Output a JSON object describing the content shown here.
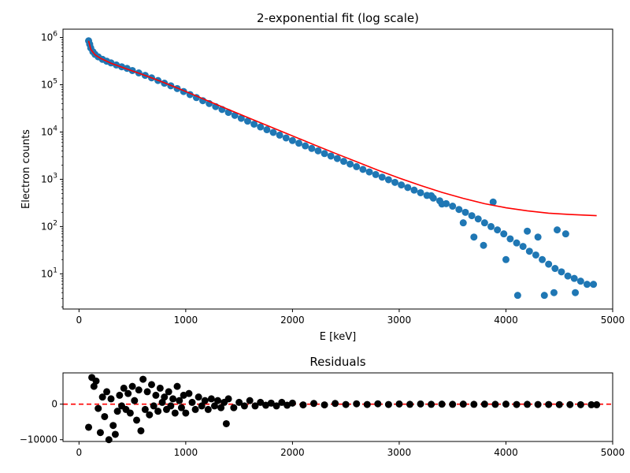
{
  "chart_data": [
    {
      "type": "scatter",
      "title": "2-exponential fit (log scale)",
      "xlabel": "E [keV]",
      "ylabel": "Electron counts",
      "xlim": [
        -150,
        5000
      ],
      "ylim": [
        1.8,
        1500000
      ],
      "yscale": "log",
      "xticks": [
        0,
        1000,
        2000,
        3000,
        4000,
        5000
      ],
      "yticks": [
        {
          "value": 10,
          "base": "10",
          "exp": "1"
        },
        {
          "value": 100,
          "base": "10",
          "exp": "2"
        },
        {
          "value": 1000,
          "base": "10",
          "exp": "3"
        },
        {
          "value": 10000,
          "base": "10",
          "exp": "4"
        },
        {
          "value": 100000,
          "base": "10",
          "exp": "5"
        },
        {
          "value": 1000000,
          "base": "10",
          "exp": "6"
        }
      ],
      "grid": false,
      "series": [
        {
          "kind": "scatter",
          "color": "#1f77b4",
          "points": [
            [
              90,
              850000
            ],
            [
              100,
              720000
            ],
            [
              110,
              600000
            ],
            [
              130,
              500000
            ],
            [
              150,
              440000
            ],
            [
              180,
              390000
            ],
            [
              220,
              345000
            ],
            [
              260,
              315000
            ],
            [
              300,
              290000
            ],
            [
              350,
              262000
            ],
            [
              400,
              240000
            ],
            [
              450,
              222000
            ],
            [
              500,
              200000
            ],
            [
              560,
              178000
            ],
            [
              620,
              158000
            ],
            [
              680,
              140000
            ],
            [
              740,
              123000
            ],
            [
              800,
              108000
            ],
            [
              860,
              95000
            ],
            [
              920,
              83000
            ],
            [
              980,
              72000
            ],
            [
              1040,
              62000
            ],
            [
              1100,
              53500
            ],
            [
              1160,
              46000
            ],
            [
              1220,
              40000
            ],
            [
              1280,
              34500
            ],
            [
              1340,
              30000
            ],
            [
              1400,
              26000
            ],
            [
              1460,
              22500
            ],
            [
              1520,
              19500
            ],
            [
              1580,
              17000
            ],
            [
              1640,
              14700
            ],
            [
              1700,
              12800
            ],
            [
              1760,
              11200
            ],
            [
              1820,
              9800
            ],
            [
              1880,
              8600
            ],
            [
              1940,
              7500
            ],
            [
              2000,
              6600
            ],
            [
              2060,
              5800
            ],
            [
              2120,
              5100
            ],
            [
              2180,
              4500
            ],
            [
              2240,
              4000
            ],
            [
              2300,
              3500
            ],
            [
              2360,
              3100
            ],
            [
              2420,
              2750
            ],
            [
              2480,
              2400
            ],
            [
              2540,
              2100
            ],
            [
              2600,
              1850
            ],
            [
              2660,
              1620
            ],
            [
              2720,
              1430
            ],
            [
              2780,
              1260
            ],
            [
              2840,
              1110
            ],
            [
              2900,
              980
            ],
            [
              2960,
              860
            ],
            [
              3020,
              760
            ],
            [
              3080,
              670
            ],
            [
              3140,
              590
            ],
            [
              3200,
              520
            ],
            [
              3260,
              455
            ],
            [
              3320,
              400
            ],
            [
              3380,
              350
            ],
            [
              3440,
              305
            ],
            [
              3500,
              270
            ],
            [
              3560,
              230
            ],
            [
              3620,
              200
            ],
            [
              3680,
              170
            ],
            [
              3740,
              145
            ],
            [
              3800,
              120
            ],
            [
              3860,
              100
            ],
            [
              3880,
              330
            ],
            [
              3920,
              85
            ],
            [
              3980,
              70
            ],
            [
              4040,
              55
            ],
            [
              4100,
              45
            ],
            [
              4110,
              3.5
            ],
            [
              4160,
              38
            ],
            [
              4220,
              30
            ],
            [
              4280,
              25
            ],
            [
              4340,
              20
            ],
            [
              4400,
              16
            ],
            [
              4460,
              13
            ],
            [
              4520,
              11
            ],
            [
              4580,
              9
            ],
            [
              4640,
              8
            ],
            [
              4700,
              7
            ],
            [
              4760,
              6
            ],
            [
              4820,
              6
            ],
            [
              4200,
              80
            ],
            [
              4300,
              60
            ],
            [
              4450,
              4
            ],
            [
              4360,
              3.5
            ],
            [
              4650,
              4
            ],
            [
              4480,
              85
            ],
            [
              4560,
              70
            ],
            [
              3600,
              120
            ],
            [
              3400,
              300
            ],
            [
              3300,
              450
            ],
            [
              3700,
              60
            ],
            [
              3790,
              40
            ],
            [
              4000,
              20
            ]
          ]
        },
        {
          "kind": "line",
          "color": "#ff0000",
          "points": [
            [
              90,
              850000
            ],
            [
              110,
              560000
            ],
            [
              150,
              430000
            ],
            [
              200,
              365000
            ],
            [
              300,
              285000
            ],
            [
              400,
              236000
            ],
            [
              500,
              196000
            ],
            [
              600,
              163000
            ],
            [
              700,
              135000
            ],
            [
              800,
              110000
            ],
            [
              900,
              89000
            ],
            [
              1000,
              72000
            ],
            [
              1200,
              46500
            ],
            [
              1400,
              30000
            ],
            [
              1600,
              19500
            ],
            [
              1800,
              12700
            ],
            [
              2000,
              8300
            ],
            [
              2200,
              5400
            ],
            [
              2400,
              3550
            ],
            [
              2600,
              2350
            ],
            [
              2800,
              1560
            ],
            [
              3000,
              1060
            ],
            [
              3200,
              740
            ],
            [
              3400,
              530
            ],
            [
              3600,
              395
            ],
            [
              3800,
              305
            ],
            [
              4000,
              250
            ],
            [
              4200,
              215
            ],
            [
              4400,
              192
            ],
            [
              4600,
              180
            ],
            [
              4850,
              170
            ]
          ]
        }
      ]
    },
    {
      "type": "scatter",
      "title": "Residuals",
      "xlabel": "",
      "ylabel": "",
      "xlim": [
        -150,
        5000
      ],
      "ylim": [
        -10500,
        8800
      ],
      "xticks": [
        0,
        1000,
        2000,
        3000,
        4000,
        5000
      ],
      "yticks": [
        {
          "value": 0,
          "label": "0"
        },
        {
          "value": -10000,
          "label": "−10000"
        }
      ],
      "grid": false,
      "zero_line": {
        "y": 0,
        "color": "#ff0000",
        "style": "dashed"
      },
      "series": [
        {
          "kind": "scatter",
          "color": "#000000",
          "points": [
            [
              90,
              -6500
            ],
            [
              120,
              7500
            ],
            [
              140,
              5000
            ],
            [
              160,
              6500
            ],
            [
              180,
              -1200
            ],
            [
              200,
              -8000
            ],
            [
              220,
              2000
            ],
            [
              240,
              -3500
            ],
            [
              260,
              3500
            ],
            [
              280,
              -10000
            ],
            [
              300,
              1500
            ],
            [
              320,
              -6000
            ],
            [
              340,
              -8500
            ],
            [
              360,
              -2000
            ],
            [
              380,
              2500
            ],
            [
              400,
              -500
            ],
            [
              420,
              4500
            ],
            [
              440,
              -1500
            ],
            [
              460,
              3000
            ],
            [
              480,
              -2500
            ],
            [
              500,
              5000
            ],
            [
              520,
              1000
            ],
            [
              540,
              -4500
            ],
            [
              560,
              4000
            ],
            [
              580,
              -7500
            ],
            [
              600,
              7000
            ],
            [
              620,
              -1500
            ],
            [
              640,
              3500
            ],
            [
              660,
              -3000
            ],
            [
              680,
              5500
            ],
            [
              700,
              -500
            ],
            [
              720,
              2500
            ],
            [
              740,
              -2000
            ],
            [
              760,
              4500
            ],
            [
              780,
              500
            ],
            [
              800,
              2000
            ],
            [
              820,
              -1500
            ],
            [
              840,
              3500
            ],
            [
              860,
              -500
            ],
            [
              880,
              1500
            ],
            [
              900,
              -2500
            ],
            [
              920,
              5000
            ],
            [
              940,
              1000
            ],
            [
              960,
              -1000
            ],
            [
              980,
              2500
            ],
            [
              1000,
              -2500
            ],
            [
              1030,
              3000
            ],
            [
              1060,
              500
            ],
            [
              1090,
              -1500
            ],
            [
              1120,
              2000
            ],
            [
              1150,
              -500
            ],
            [
              1180,
              1000
            ],
            [
              1210,
              -1500
            ],
            [
              1240,
              1500
            ],
            [
              1270,
              -500
            ],
            [
              1300,
              1000
            ],
            [
              1330,
              -1000
            ],
            [
              1360,
              500
            ],
            [
              1380,
              -5500
            ],
            [
              1400,
              1500
            ],
            [
              1450,
              -1000
            ],
            [
              1500,
              500
            ],
            [
              1550,
              -500
            ],
            [
              1600,
              1000
            ],
            [
              1650,
              -500
            ],
            [
              1700,
              500
            ],
            [
              1750,
              -300
            ],
            [
              1800,
              300
            ],
            [
              1850,
              -500
            ],
            [
              1900,
              500
            ],
            [
              1950,
              -300
            ],
            [
              2000,
              300
            ],
            [
              2100,
              -200
            ],
            [
              2200,
              200
            ],
            [
              2300,
              -200
            ],
            [
              2400,
              200
            ],
            [
              2500,
              -100
            ],
            [
              2600,
              100
            ],
            [
              2700,
              -100
            ],
            [
              2800,
              100
            ],
            [
              2900,
              -100
            ],
            [
              3000,
              50
            ],
            [
              3100,
              -50
            ],
            [
              3200,
              50
            ],
            [
              3300,
              -50
            ],
            [
              3400,
              0
            ],
            [
              3500,
              -50
            ],
            [
              3600,
              0
            ],
            [
              3700,
              -50
            ],
            [
              3800,
              0
            ],
            [
              3900,
              -50
            ],
            [
              4000,
              0
            ],
            [
              4100,
              -100
            ],
            [
              4200,
              -50
            ],
            [
              4300,
              -100
            ],
            [
              4400,
              -100
            ],
            [
              4500,
              -120
            ],
            [
              4600,
              -130
            ],
            [
              4700,
              -150
            ],
            [
              4800,
              -160
            ],
            [
              4850,
              -160
            ]
          ]
        }
      ]
    }
  ]
}
